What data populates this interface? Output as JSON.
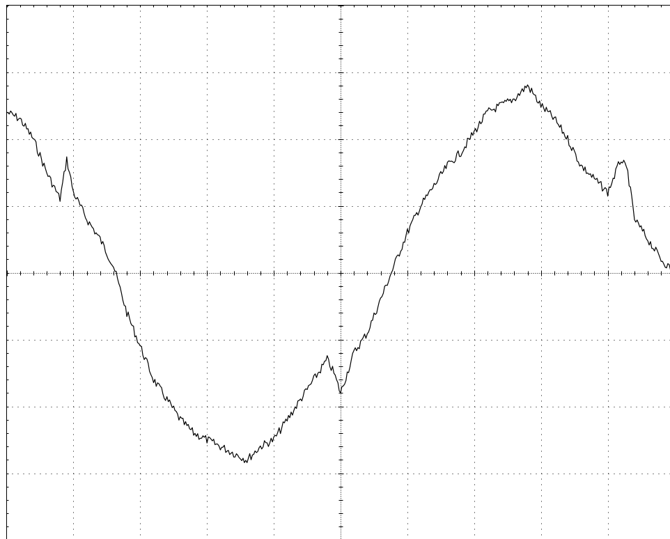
{
  "chart_data": {
    "type": "line",
    "title": "",
    "xlabel": "",
    "ylabel": "",
    "grid": true,
    "grid_style": "dotted",
    "x_divisions": 10,
    "y_divisions": 8,
    "xlim": [
      0,
      10
    ],
    "ylim": [
      -4,
      4
    ],
    "trace_color": "#000000",
    "grid_color": "#000000",
    "series": [
      {
        "x": [
          0.0,
          0.2,
          0.4,
          0.6,
          0.8,
          0.9,
          1.0,
          1.2,
          1.4,
          1.6,
          1.8,
          2.0,
          2.2,
          2.4,
          2.6,
          2.8,
          3.0,
          3.2,
          3.4,
          3.6,
          3.8,
          4.0,
          4.2,
          4.4,
          4.6,
          4.8,
          4.9,
          5.0,
          5.2,
          5.4,
          5.6,
          5.8,
          6.0,
          6.2,
          6.4,
          6.6,
          6.8,
          7.0,
          7.2,
          7.4,
          7.6,
          7.8,
          8.0,
          8.2,
          8.4,
          8.6,
          8.8,
          9.0,
          9.2,
          9.3,
          9.4,
          9.6,
          9.8,
          10.0
        ],
        "y": [
          2.4,
          2.3,
          2.0,
          1.5,
          1.1,
          1.7,
          1.2,
          0.8,
          0.5,
          0.1,
          -0.6,
          -1.1,
          -1.6,
          -1.9,
          -2.2,
          -2.4,
          -2.5,
          -2.6,
          -2.7,
          -2.8,
          -2.6,
          -2.5,
          -2.2,
          -1.9,
          -1.6,
          -1.3,
          -1.5,
          -1.8,
          -1.2,
          -0.9,
          -0.4,
          0.1,
          0.6,
          1.0,
          1.3,
          1.6,
          1.8,
          2.1,
          2.4,
          2.5,
          2.6,
          2.8,
          2.5,
          2.3,
          2.0,
          1.6,
          1.4,
          1.2,
          1.7,
          1.5,
          0.8,
          0.5,
          0.2,
          0.0
        ]
      }
    ]
  }
}
